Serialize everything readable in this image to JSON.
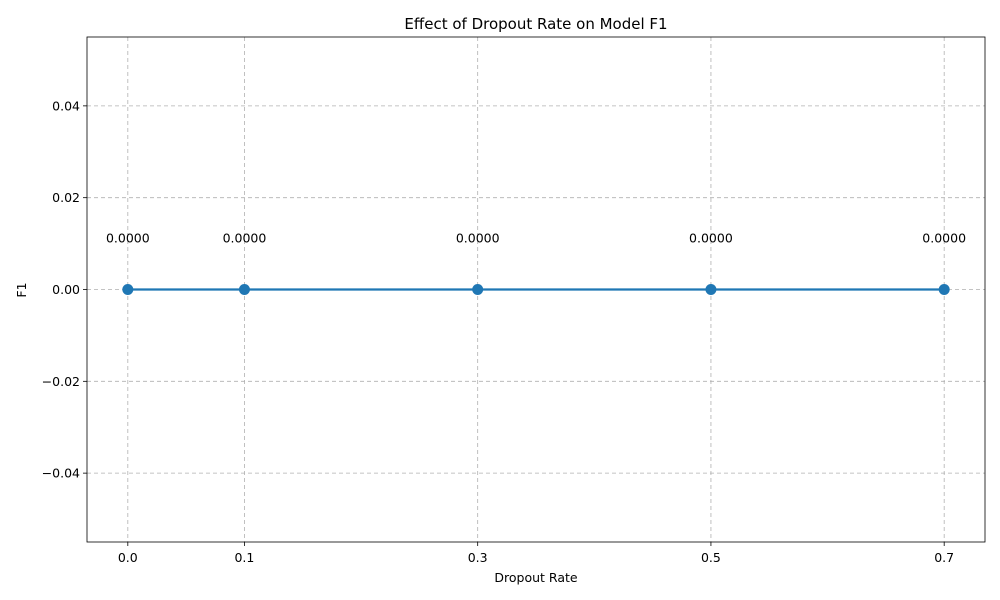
{
  "chart_data": {
    "type": "line",
    "title": "Effect of Dropout Rate on Model F1",
    "xlabel": "Dropout Rate",
    "ylabel": "F1",
    "x": [
      0.0,
      0.1,
      0.3,
      0.5,
      0.7
    ],
    "x_tick_labels": [
      "0.0",
      "0.1",
      "0.3",
      "0.5",
      "0.7"
    ],
    "xlim": [
      -0.035,
      0.735
    ],
    "series": [
      {
        "values": [
          0.0,
          0.0,
          0.0,
          0.0,
          0.0
        ],
        "data_labels": [
          "0.0000",
          "0.0000",
          "0.0000",
          "0.0000",
          "0.0000"
        ],
        "color": "#1f77b4",
        "marker": "circle"
      }
    ],
    "y_ticks": [
      0.04,
      0.02,
      0.0,
      -0.02,
      -0.04
    ],
    "y_tick_labels": [
      "0.04",
      "0.02",
      "0.00",
      "−0.02",
      "−0.04"
    ],
    "ylim": [
      -0.055,
      0.055
    ],
    "grid": true,
    "grid_style": "dashed",
    "grid_color": "#b0b0b0"
  }
}
